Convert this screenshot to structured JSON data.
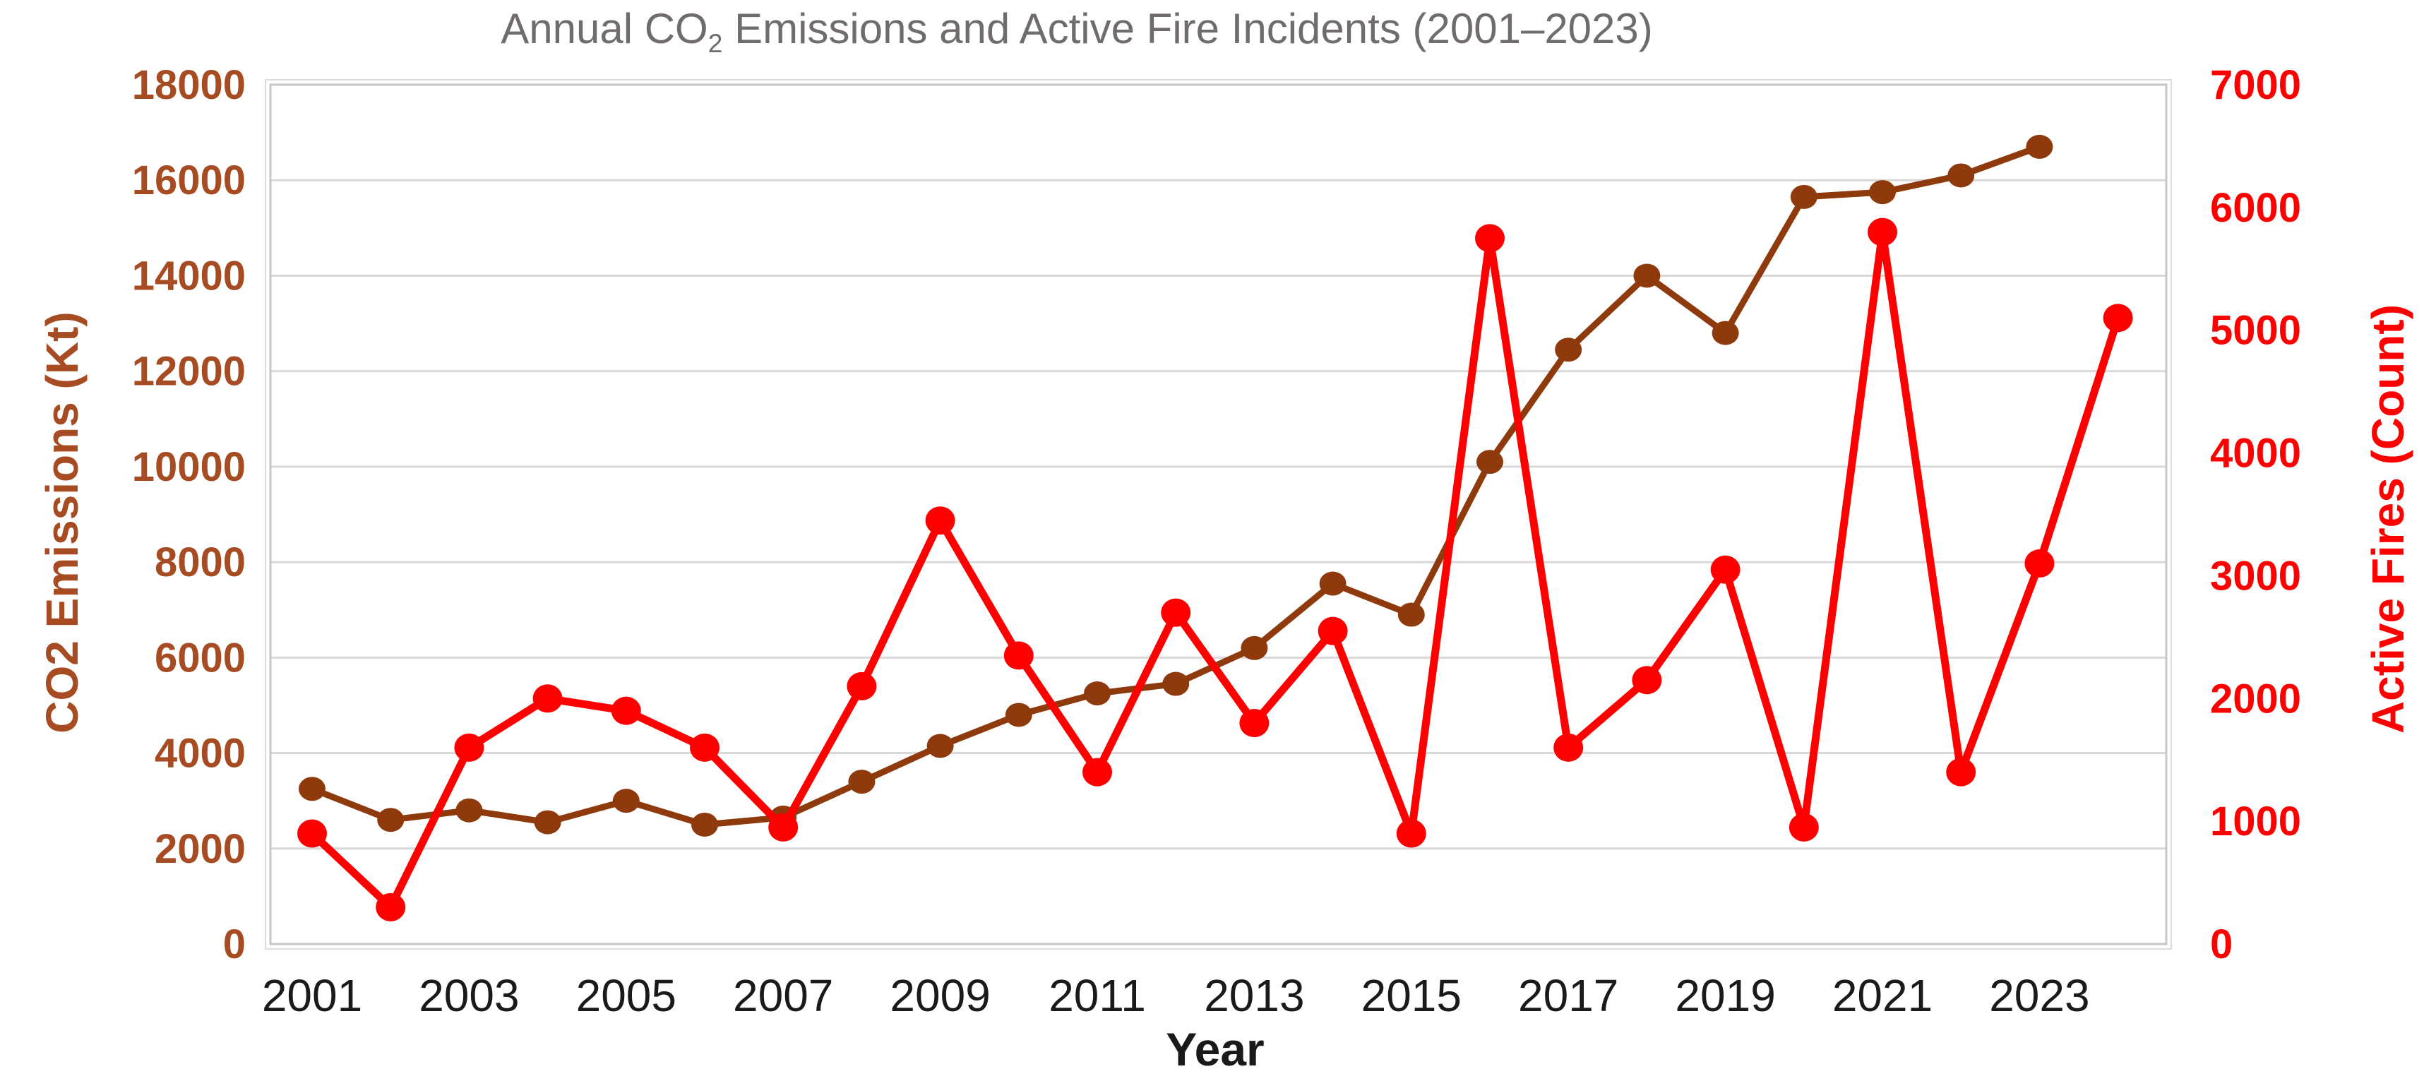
{
  "title": {
    "part1": "Annual CO",
    "subscript": "2",
    "part2": " Emissions and Active Fire Incidents (2001–2023)"
  },
  "colors": {
    "co2_series": "#8E3A0D",
    "fires_series": "#FF0000",
    "left_axis_text": "#A64B22",
    "right_axis_text": "#FF0000",
    "x_axis_text": "#1A1A1A",
    "title_text": "#716C6C",
    "gridline": "#D9D9D9",
    "plot_border": "#C8C6C6"
  },
  "chart_data": {
    "type": "line",
    "title": "Annual CO2 Emissions and Active Fire Incidents (2001–2023)",
    "x": [
      2001,
      2002,
      2003,
      2004,
      2005,
      2006,
      2007,
      2008,
      2009,
      2010,
      2011,
      2012,
      2013,
      2014,
      2015,
      2016,
      2017,
      2018,
      2019,
      2020,
      2021,
      2022,
      2023,
      2024
    ],
    "x_tick_labels": [
      "2001",
      "2003",
      "2005",
      "2007",
      "2009",
      "2011",
      "2013",
      "2015",
      "2017",
      "2019",
      "2021",
      "2023"
    ],
    "xlabel": "Year",
    "grid": true,
    "legend": false,
    "left_axis": {
      "label": "CO2 Emissions (Kt)",
      "min": 0,
      "max": 18000,
      "step": 2000,
      "tick_labels": [
        "0",
        "2000",
        "4000",
        "6000",
        "8000",
        "10000",
        "12000",
        "14000",
        "16000",
        "18000"
      ]
    },
    "right_axis": {
      "label": "Active Fires (Count)",
      "min": 0,
      "max": 7000,
      "step": 1000,
      "tick_labels": [
        "0",
        "1000",
        "2000",
        "3000",
        "4000",
        "5000",
        "6000",
        "7000"
      ]
    },
    "series": [
      {
        "name": "CO2 Emissions (Kt)",
        "axis": "left",
        "color": "#8E3A0D",
        "values": [
          3250,
          2600,
          2800,
          2550,
          3000,
          2500,
          2650,
          3400,
          4150,
          4800,
          5250,
          5450,
          6200,
          7550,
          6900,
          10100,
          12450,
          14000,
          12800,
          15650,
          15750,
          16100,
          16700,
          null
        ]
      },
      {
        "name": "Active Fires (Count)",
        "axis": "right",
        "color": "#FF0000",
        "values": [
          900,
          300,
          1600,
          2000,
          1900,
          1600,
          950,
          2100,
          3450,
          2350,
          1400,
          2700,
          1800,
          2550,
          900,
          5750,
          1600,
          2150,
          3050,
          950,
          5800,
          1400,
          3100,
          5100
        ]
      }
    ]
  }
}
